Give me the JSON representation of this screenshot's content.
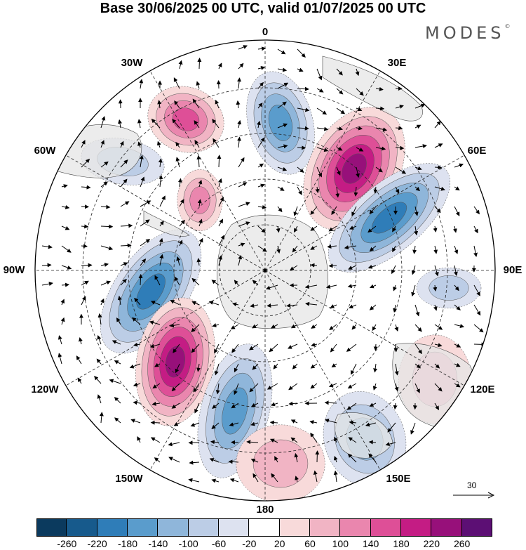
{
  "title": "Base 30/06/2025 00 UTC, valid 01/07/2025 00 UTC",
  "brand": "MODES",
  "brand_mark": "©",
  "longitude_labels": {
    "lon_0": "0",
    "lon_30e": "30E",
    "lon_60e": "60E",
    "lon_90e": "90E",
    "lon_120e": "120E",
    "lon_150e": "150E",
    "lon_180": "180",
    "lon_150w": "150W",
    "lon_120w": "120W",
    "lon_90w": "90W",
    "lon_60w": "60W",
    "lon_30w": "30W"
  },
  "reference_vector": {
    "label": "30"
  },
  "colorbar": {
    "ticks": [
      "-260",
      "-220",
      "-180",
      "-140",
      "-100",
      "-60",
      "-20",
      "20",
      "60",
      "100",
      "140",
      "180",
      "220",
      "260"
    ],
    "colors": [
      "#0b3a5e",
      "#175a8c",
      "#2f7db8",
      "#5a9ccc",
      "#8fb6da",
      "#bccde6",
      "#dde2f0",
      "#ffffff",
      "#f8dada",
      "#f1b4c4",
      "#ea86ae",
      "#de4f97",
      "#c41c84",
      "#97107a",
      "#5c0f74"
    ]
  },
  "map": {
    "projection": "south-polar-stereographic",
    "field": "wind anomaly with vectors",
    "land_color": "#e6e6e6",
    "anomaly_cells": [
      {
        "sign": "positive",
        "level": 4,
        "region": "south-atlantic 20W"
      },
      {
        "sign": "negative",
        "level": 4,
        "region": "near 0-10E"
      },
      {
        "sign": "positive",
        "level": 6,
        "region": "south-west indian 40E"
      },
      {
        "sign": "negative",
        "level": 5,
        "region": "south indian 60E"
      },
      {
        "sign": "negative",
        "level": 2,
        "region": "south america 60W"
      },
      {
        "sign": "positive",
        "level": 3,
        "region": "drake passage 50W"
      },
      {
        "sign": "negative",
        "level": 5,
        "region": "south-east pacific 100W"
      },
      {
        "sign": "positive",
        "level": 6,
        "region": "south pacific 125W"
      },
      {
        "sign": "negative",
        "level": 4,
        "region": "south pacific 150W"
      },
      {
        "sign": "positive",
        "level": 2,
        "region": "ross sea 180"
      },
      {
        "sign": "negative",
        "level": 3,
        "region": "tasman sea 150E"
      },
      {
        "sign": "positive",
        "level": 2,
        "region": "australia 125E"
      },
      {
        "sign": "negative",
        "level": 2,
        "region": "south indian 95E"
      }
    ]
  }
}
